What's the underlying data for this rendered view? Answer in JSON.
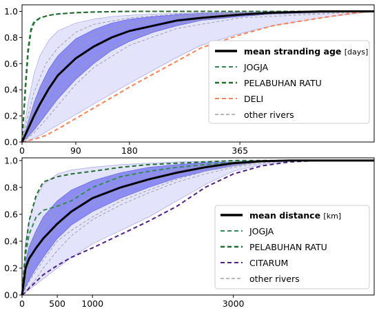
{
  "chart_data": [
    {
      "type": "line",
      "title": "",
      "xlabel": "",
      "ylabel": "",
      "xlim": [
        0,
        590
      ],
      "ylim": [
        0,
        1.05
      ],
      "x_ticks": [
        0,
        90,
        180,
        365
      ],
      "x_tick_labels": [
        "0",
        "90",
        "180",
        "365"
      ],
      "y_ticks": [
        0,
        0.2,
        0.4,
        0.6,
        0.8,
        1.0
      ],
      "y_tick_labels": [
        "0.0",
        "0.2",
        "0.4",
        "0.6",
        "0.8",
        "1.0"
      ],
      "grid": false,
      "legend_position": "center-right",
      "band_outer": {
        "x": [
          0,
          10,
          20,
          30,
          45,
          60,
          90,
          120,
          150,
          180,
          220,
          260,
          300,
          365,
          420,
          500,
          590
        ],
        "upper": [
          0,
          0.3,
          0.52,
          0.66,
          0.78,
          0.85,
          0.91,
          0.94,
          0.96,
          0.97,
          0.98,
          0.985,
          0.99,
          0.995,
          1.0,
          1.0,
          1.0
        ],
        "lower": [
          0,
          0.01,
          0.03,
          0.05,
          0.09,
          0.13,
          0.21,
          0.29,
          0.37,
          0.45,
          0.55,
          0.65,
          0.74,
          0.83,
          0.89,
          0.95,
          1.0
        ]
      },
      "band_inner": {
        "x": [
          0,
          10,
          20,
          30,
          45,
          60,
          90,
          120,
          150,
          180,
          220,
          260,
          300,
          365,
          420,
          500,
          590
        ],
        "upper": [
          0,
          0.15,
          0.3,
          0.42,
          0.56,
          0.66,
          0.79,
          0.86,
          0.91,
          0.94,
          0.96,
          0.975,
          0.985,
          0.99,
          0.995,
          1.0,
          1.0
        ],
        "lower": [
          0,
          0.04,
          0.09,
          0.15,
          0.24,
          0.33,
          0.48,
          0.6,
          0.7,
          0.77,
          0.84,
          0.89,
          0.93,
          0.96,
          0.98,
          0.99,
          1.0
        ]
      },
      "series": [
        {
          "name": "mean stranding age",
          "unit": "[days]",
          "style": "solid",
          "color": "#000000",
          "x": [
            0,
            10,
            20,
            30,
            45,
            60,
            90,
            120,
            150,
            180,
            220,
            260,
            300,
            365,
            420,
            500,
            590
          ],
          "values": [
            0,
            0.1,
            0.2,
            0.29,
            0.41,
            0.51,
            0.64,
            0.73,
            0.8,
            0.85,
            0.89,
            0.93,
            0.95,
            0.975,
            0.99,
            1.0,
            1.0
          ]
        },
        {
          "name": "JOGJA",
          "style": "dashed",
          "color": "#2e8b57",
          "x": [
            0,
            5,
            10,
            15,
            20,
            30,
            45,
            60,
            90,
            120,
            180,
            260,
            365,
            590
          ],
          "values": [
            0,
            0.4,
            0.72,
            0.87,
            0.92,
            0.95,
            0.97,
            0.98,
            0.99,
            0.995,
            1.0,
            1.0,
            1.0,
            1.0
          ]
        },
        {
          "name": "PELABUHAN RATU",
          "style": "dashed",
          "color": "#1f6e2a",
          "x": [
            0,
            5,
            10,
            15,
            20,
            30,
            45,
            60,
            90,
            120,
            180,
            260,
            365,
            590
          ],
          "values": [
            0,
            0.35,
            0.68,
            0.85,
            0.91,
            0.95,
            0.97,
            0.98,
            0.99,
            0.995,
            1.0,
            1.0,
            1.0,
            1.0
          ]
        },
        {
          "name": "DELI",
          "style": "dashed",
          "color": "#ff7f50",
          "x": [
            0,
            20,
            40,
            60,
            90,
            120,
            150,
            180,
            220,
            260,
            300,
            365,
            420,
            500,
            560,
            590
          ],
          "values": [
            0,
            0.02,
            0.05,
            0.1,
            0.18,
            0.26,
            0.34,
            0.42,
            0.52,
            0.62,
            0.72,
            0.82,
            0.89,
            0.95,
            0.99,
            1.0
          ]
        },
        {
          "name": "other rivers",
          "style": "dashed",
          "color": "#a0a0a0",
          "lines": [
            {
              "x": [
                0,
                10,
                20,
                40,
                60,
                90,
                120,
                180,
                260,
                365,
                590
              ],
              "values": [
                0,
                0.2,
                0.38,
                0.6,
                0.72,
                0.84,
                0.9,
                0.95,
                0.98,
                0.99,
                1.0
              ]
            },
            {
              "x": [
                0,
                10,
                20,
                40,
                60,
                90,
                120,
                180,
                260,
                365,
                590
              ],
              "values": [
                0,
                0.08,
                0.16,
                0.33,
                0.47,
                0.62,
                0.73,
                0.85,
                0.93,
                0.98,
                1.0
              ]
            },
            {
              "x": [
                0,
                10,
                20,
                40,
                60,
                90,
                120,
                180,
                260,
                365,
                590
              ],
              "values": [
                0,
                0.05,
                0.11,
                0.24,
                0.37,
                0.53,
                0.65,
                0.8,
                0.91,
                0.97,
                1.0
              ]
            },
            {
              "x": [
                0,
                10,
                20,
                40,
                60,
                90,
                120,
                180,
                260,
                365,
                590
              ],
              "values": [
                0,
                0.13,
                0.26,
                0.47,
                0.6,
                0.74,
                0.83,
                0.91,
                0.96,
                0.99,
                1.0
              ]
            },
            {
              "x": [
                0,
                10,
                20,
                40,
                60,
                90,
                120,
                180,
                260,
                365,
                590
              ],
              "values": [
                0,
                0.03,
                0.07,
                0.17,
                0.28,
                0.44,
                0.57,
                0.74,
                0.87,
                0.95,
                1.0
              ]
            },
            {
              "x": [
                0,
                10,
                20,
                40,
                60,
                90,
                120,
                180,
                260,
                365,
                590
              ],
              "values": [
                0,
                0.11,
                0.21,
                0.4,
                0.55,
                0.7,
                0.79,
                0.89,
                0.95,
                0.985,
                1.0
              ]
            }
          ]
        }
      ]
    },
    {
      "type": "line",
      "title": "",
      "xlabel": "",
      "ylabel": "",
      "xlim": [
        0,
        5000
      ],
      "ylim": [
        0,
        1.02
      ],
      "x_ticks": [
        0,
        500,
        1000,
        3000
      ],
      "x_tick_labels": [
        "0",
        "500",
        "1000",
        "3000"
      ],
      "y_ticks": [
        0,
        0.2,
        0.4,
        0.6,
        0.8,
        1.0
      ],
      "y_tick_labels": [
        "0.0",
        "0.2",
        "0.4",
        "0.6",
        "0.8",
        "1.0"
      ],
      "grid": false,
      "legend_position": "lower-right",
      "band_outer": {
        "x": [
          0,
          50,
          100,
          200,
          300,
          500,
          700,
          1000,
          1400,
          1800,
          2200,
          2600,
          3000,
          3400,
          3800,
          4200,
          5000
        ],
        "upper": [
          0,
          0.4,
          0.55,
          0.72,
          0.82,
          0.9,
          0.93,
          0.95,
          0.97,
          0.98,
          0.99,
          0.995,
          1.0,
          1.0,
          1.0,
          1.0,
          1.0
        ],
        "lower": [
          0,
          0.02,
          0.04,
          0.08,
          0.12,
          0.2,
          0.28,
          0.38,
          0.48,
          0.58,
          0.7,
          0.82,
          0.92,
          0.97,
          0.995,
          1.0,
          1.0
        ]
      },
      "band_inner": {
        "x": [
          0,
          50,
          100,
          200,
          300,
          500,
          700,
          1000,
          1400,
          1800,
          2200,
          2600,
          3000,
          3400,
          3800,
          4200,
          5000
        ],
        "upper": [
          0,
          0.25,
          0.36,
          0.48,
          0.58,
          0.7,
          0.78,
          0.85,
          0.91,
          0.95,
          0.97,
          0.985,
          0.99,
          1.0,
          1.0,
          1.0,
          1.0
        ],
        "lower": [
          0,
          0.06,
          0.11,
          0.2,
          0.28,
          0.42,
          0.52,
          0.62,
          0.72,
          0.8,
          0.87,
          0.92,
          0.96,
          0.99,
          1.0,
          1.0,
          1.0
        ]
      },
      "series": [
        {
          "name": "mean distance",
          "unit": "[km]",
          "style": "solid",
          "color": "#000000",
          "x": [
            0,
            50,
            100,
            200,
            300,
            500,
            700,
            1000,
            1400,
            1800,
            2200,
            2600,
            3000,
            3400,
            3800,
            4200,
            5000
          ],
          "values": [
            0,
            0.2,
            0.27,
            0.35,
            0.42,
            0.53,
            0.62,
            0.72,
            0.8,
            0.86,
            0.91,
            0.95,
            0.98,
            0.995,
            1.0,
            1.0,
            1.0
          ]
        },
        {
          "name": "JOGJA",
          "style": "dashed",
          "color": "#2e8b57",
          "x": [
            0,
            50,
            100,
            200,
            300,
            500,
            700,
            1000,
            1400,
            1800,
            2200,
            2600,
            3000,
            3800,
            5000
          ],
          "values": [
            0,
            0.3,
            0.45,
            0.58,
            0.63,
            0.66,
            0.7,
            0.8,
            0.88,
            0.92,
            0.95,
            0.97,
            0.985,
            1.0,
            1.0
          ]
        },
        {
          "name": "PELABUHAN RATU",
          "style": "dashed",
          "color": "#1f6e2a",
          "x": [
            0,
            50,
            100,
            200,
            300,
            500,
            700,
            1000,
            1400,
            1800,
            2200,
            2600,
            3000,
            3800,
            5000
          ],
          "values": [
            0,
            0.35,
            0.55,
            0.74,
            0.84,
            0.88,
            0.9,
            0.92,
            0.95,
            0.97,
            0.98,
            0.99,
            1.0,
            1.0,
            1.0
          ]
        },
        {
          "name": "CITARUM",
          "style": "dashed",
          "color": "#4b1e8c",
          "x": [
            0,
            50,
            100,
            200,
            300,
            500,
            700,
            1000,
            1400,
            1800,
            2200,
            2600,
            3000,
            3400,
            3800,
            4200,
            5000
          ],
          "values": [
            0,
            0.02,
            0.05,
            0.1,
            0.15,
            0.22,
            0.28,
            0.35,
            0.45,
            0.55,
            0.66,
            0.8,
            0.9,
            0.96,
            0.99,
            1.0,
            1.0
          ]
        },
        {
          "name": "other rivers",
          "style": "dashed",
          "color": "#a0a0a0",
          "lines": [
            {
              "x": [
                0,
                100,
                200,
                300,
                500,
                700,
                1000,
                1400,
                1800,
                2200,
                2600,
                3000,
                3400,
                3800,
                5000
              ],
              "values": [
                0,
                0.2,
                0.3,
                0.38,
                0.5,
                0.58,
                0.68,
                0.78,
                0.85,
                0.9,
                0.94,
                0.97,
                0.99,
                1.0,
                1.0
              ]
            },
            {
              "x": [
                0,
                100,
                200,
                300,
                500,
                700,
                1000,
                1400,
                1800,
                2200,
                2600,
                3000,
                3400,
                3800,
                5000
              ],
              "values": [
                0,
                0.1,
                0.18,
                0.26,
                0.4,
                0.48,
                0.58,
                0.7,
                0.78,
                0.86,
                0.92,
                0.96,
                0.99,
                1.0,
                1.0
              ]
            },
            {
              "x": [
                0,
                100,
                200,
                300,
                500,
                700,
                1000,
                1400,
                1800,
                2200,
                2600,
                3000,
                3400,
                3800,
                5000
              ],
              "values": [
                0,
                0.35,
                0.45,
                0.55,
                0.65,
                0.72,
                0.8,
                0.87,
                0.92,
                0.95,
                0.97,
                0.99,
                1.0,
                1.0,
                1.0
              ]
            },
            {
              "x": [
                0,
                100,
                200,
                300,
                500,
                700,
                1000,
                1400,
                1800,
                2200,
                2600,
                3000,
                3400,
                3800,
                5000
              ],
              "values": [
                0,
                0.06,
                0.12,
                0.2,
                0.33,
                0.44,
                0.56,
                0.67,
                0.76,
                0.84,
                0.9,
                0.95,
                0.98,
                1.0,
                1.0
              ]
            },
            {
              "x": [
                0,
                100,
                200,
                300,
                500,
                700,
                1000,
                1400,
                1800,
                2200,
                2600,
                3000,
                3400,
                3800,
                5000
              ],
              "values": [
                0,
                0.25,
                0.4,
                0.5,
                0.6,
                0.66,
                0.74,
                0.83,
                0.89,
                0.93,
                0.96,
                0.98,
                0.995,
                1.0,
                1.0
              ]
            }
          ]
        }
      ]
    }
  ]
}
